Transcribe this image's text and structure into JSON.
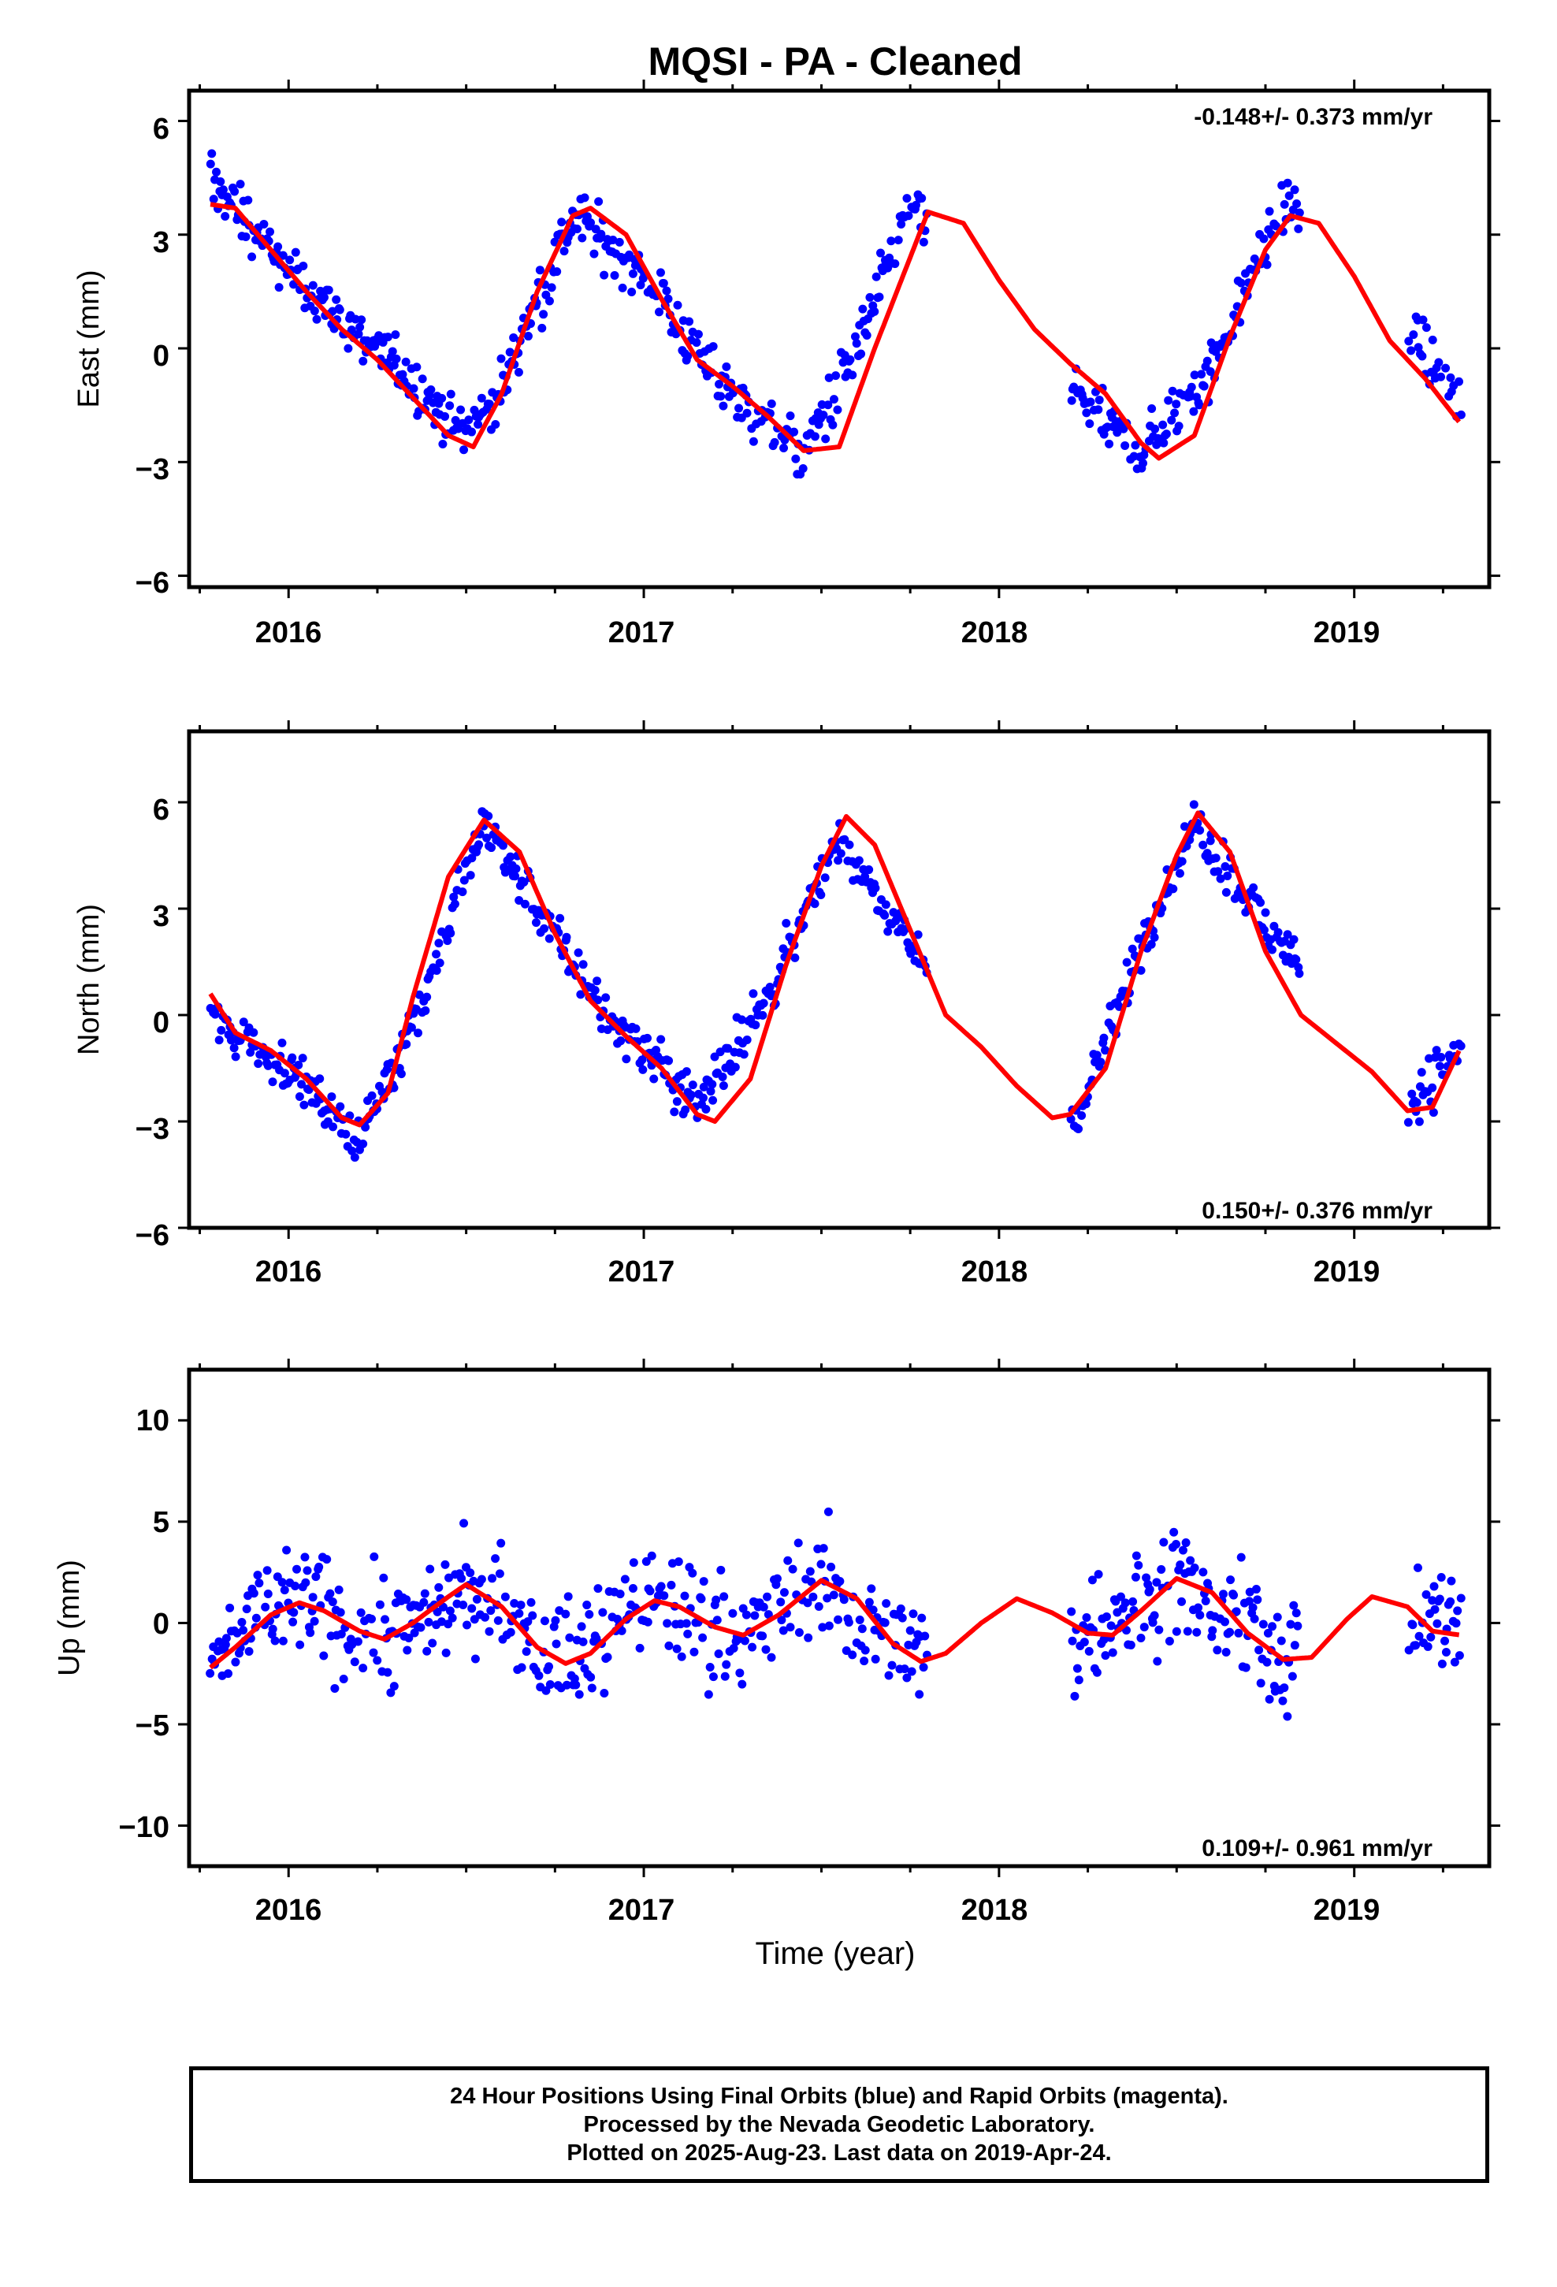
{
  "title": "MQSI  - PA - Cleaned",
  "footer": {
    "line1": "24 Hour Positions Using Final Orbits (blue) and Rapid Orbits (magenta).",
    "line2": "Processed by the Nevada Geodetic Laboratory.",
    "line3": "Plotted on 2025-Aug-23. Last data on 2019-Apr-24."
  },
  "colors": {
    "points": "#0000ff",
    "fit": "#ff0000",
    "axes": "#000000"
  },
  "chart_data": [
    {
      "type": "scatter",
      "ylabel": "East (mm)",
      "xlabel": "",
      "xlim": [
        2015.72,
        2019.38
      ],
      "ylim": [
        -6.3,
        6.8
      ],
      "xticks": [
        "2016",
        "2017",
        "2018",
        "2019"
      ],
      "yticks": [
        "6",
        "3",
        "0",
        "−3",
        "−6"
      ],
      "annotation": "-0.148+/- 0.373 mm/yr",
      "annotation_position": "top-right",
      "gaps": [
        [
          2017.8,
          2018.2
        ],
        [
          2018.85,
          2019.15
        ]
      ],
      "fit": {
        "x": [
          2015.78,
          2015.85,
          2015.95,
          2016.05,
          2016.15,
          2016.25,
          2016.35,
          2016.45,
          2016.52,
          2016.6,
          2016.7,
          2016.8,
          2016.85,
          2016.95,
          2017.05,
          2017.15,
          2017.25,
          2017.35,
          2017.45,
          2017.55,
          2017.65,
          2017.8,
          2017.9,
          2018.0,
          2018.1,
          2018.2,
          2018.3,
          2018.4,
          2018.45,
          2018.55,
          2018.65,
          2018.75,
          2018.82,
          2018.9,
          2019.0,
          2019.1,
          2019.2,
          2019.3
        ],
        "y": [
          3.8,
          3.7,
          2.6,
          1.5,
          0.5,
          -0.3,
          -1.3,
          -2.3,
          -2.6,
          -1.2,
          1.5,
          3.5,
          3.7,
          3.0,
          1.3,
          -0.3,
          -1.0,
          -1.8,
          -2.7,
          -2.6,
          0.0,
          3.6,
          3.3,
          1.8,
          0.5,
          -0.4,
          -1.2,
          -2.5,
          -2.9,
          -2.3,
          0.3,
          2.6,
          3.5,
          3.3,
          1.9,
          0.2,
          -0.8,
          -2.0
        ]
      },
      "points": {
        "anchors_x": [
          2015.78,
          2016.0,
          2016.25,
          2016.5,
          2016.6,
          2016.8,
          2017.0,
          2017.2,
          2017.45,
          2017.6,
          2017.75,
          2018.2,
          2018.4,
          2018.6,
          2018.8,
          2019.15,
          2019.3
        ],
        "anchors_y": [
          4.5,
          2.0,
          0.0,
          -2.2,
          -1.0,
          3.5,
          2.0,
          -0.8,
          -2.8,
          0.0,
          3.8,
          -1.0,
          -2.8,
          -0.5,
          3.8,
          0.5,
          -1.5
        ],
        "spread": 0.9
      }
    },
    {
      "type": "scatter",
      "ylabel": "North (mm)",
      "xlabel": "",
      "xlim": [
        2015.72,
        2019.38
      ],
      "ylim": [
        -6.0,
        8.0
      ],
      "xticks": [
        "2016",
        "2017",
        "2018",
        "2019"
      ],
      "yticks": [
        "6",
        "3",
        "0",
        "−3",
        "−6"
      ],
      "annotation": "0.150+/- 0.376 mm/yr",
      "annotation_position": "bottom-right",
      "gaps": [
        [
          2017.8,
          2018.2
        ],
        [
          2018.85,
          2019.15
        ]
      ],
      "fit": {
        "x": [
          2015.78,
          2015.85,
          2015.95,
          2016.05,
          2016.15,
          2016.2,
          2016.28,
          2016.35,
          2016.45,
          2016.55,
          2016.65,
          2016.75,
          2016.85,
          2016.95,
          2017.05,
          2017.15,
          2017.2,
          2017.3,
          2017.4,
          2017.5,
          2017.57,
          2017.65,
          2017.75,
          2017.85,
          2017.95,
          2018.05,
          2018.15,
          2018.2,
          2018.3,
          2018.4,
          2018.5,
          2018.56,
          2018.65,
          2018.75,
          2018.85,
          2018.95,
          2019.05,
          2019.15,
          2019.22,
          2019.3
        ],
        "y": [
          0.6,
          -0.5,
          -1.0,
          -1.8,
          -2.9,
          -3.1,
          -2.2,
          0.5,
          3.9,
          5.5,
          4.6,
          2.3,
          0.4,
          -0.6,
          -1.5,
          -2.8,
          -3.0,
          -1.8,
          1.4,
          4.2,
          5.6,
          4.8,
          2.4,
          0.0,
          -0.9,
          -2.0,
          -2.9,
          -2.8,
          -1.5,
          1.8,
          4.5,
          5.7,
          4.6,
          1.8,
          0.0,
          -0.8,
          -1.6,
          -2.7,
          -2.6,
          -0.9
        ]
      },
      "points": {
        "anchors_x": [
          2015.78,
          2016.0,
          2016.2,
          2016.4,
          2016.55,
          2016.7,
          2016.9,
          2017.15,
          2017.35,
          2017.55,
          2017.75,
          2018.22,
          2018.4,
          2018.55,
          2018.75,
          2019.15,
          2019.3
        ],
        "anchors_y": [
          0.0,
          -1.5,
          -3.5,
          1.0,
          5.5,
          3.0,
          0.0,
          -2.5,
          0.5,
          5.0,
          2.0,
          -3.0,
          2.0,
          5.5,
          2.5,
          -2.5,
          -1.0
        ],
        "spread": 0.9
      }
    },
    {
      "type": "scatter",
      "ylabel": "Up (mm)",
      "xlabel": "Time (year)",
      "xlim": [
        2015.72,
        2019.38
      ],
      "ylim": [
        -12,
        12.5
      ],
      "xticks": [
        "2016",
        "2017",
        "2018",
        "2019"
      ],
      "yticks": [
        "10",
        "5",
        "0",
        "−5",
        "−10"
      ],
      "annotation": "0.109+/- 0.961 mm/yr",
      "annotation_position": "bottom-right",
      "gaps": [
        [
          2017.8,
          2018.2
        ],
        [
          2018.85,
          2019.15
        ]
      ],
      "fit": {
        "x": [
          2015.78,
          2015.85,
          2015.95,
          2016.03,
          2016.1,
          2016.2,
          2016.27,
          2016.35,
          2016.45,
          2016.5,
          2016.6,
          2016.7,
          2016.78,
          2016.85,
          2016.95,
          2017.03,
          2017.1,
          2017.2,
          2017.28,
          2017.38,
          2017.5,
          2017.6,
          2017.7,
          2017.78,
          2017.85,
          2017.95,
          2018.05,
          2018.15,
          2018.25,
          2018.32,
          2018.4,
          2018.5,
          2018.6,
          2018.7,
          2018.8,
          2018.88,
          2018.98,
          2019.05,
          2019.15,
          2019.22,
          2019.3
        ],
        "y": [
          -2.2,
          -1.2,
          0.4,
          1.0,
          0.6,
          -0.4,
          -0.8,
          0.0,
          1.3,
          1.9,
          0.8,
          -1.2,
          -2.0,
          -1.5,
          0.2,
          1.1,
          0.8,
          -0.2,
          -0.6,
          0.4,
          2.1,
          1.2,
          -1.0,
          -1.9,
          -1.5,
          0.0,
          1.2,
          0.5,
          -0.5,
          -0.6,
          0.6,
          2.2,
          1.5,
          -0.5,
          -1.8,
          -1.7,
          0.2,
          1.3,
          0.8,
          -0.4,
          -0.6
        ]
      },
      "points": {
        "anchors_x": [
          2015.78,
          2016.0,
          2016.3,
          2016.5,
          2016.8,
          2017.0,
          2017.3,
          2017.5,
          2017.75,
          2018.22,
          2018.5,
          2018.8,
          2019.15,
          2019.3
        ],
        "anchors_y": [
          -2.0,
          1.0,
          -0.5,
          2.0,
          -2.0,
          1.0,
          -0.5,
          2.0,
          -1.5,
          -0.5,
          2.0,
          -1.5,
          0.5,
          0.0
        ],
        "spread": 3.6
      }
    }
  ]
}
